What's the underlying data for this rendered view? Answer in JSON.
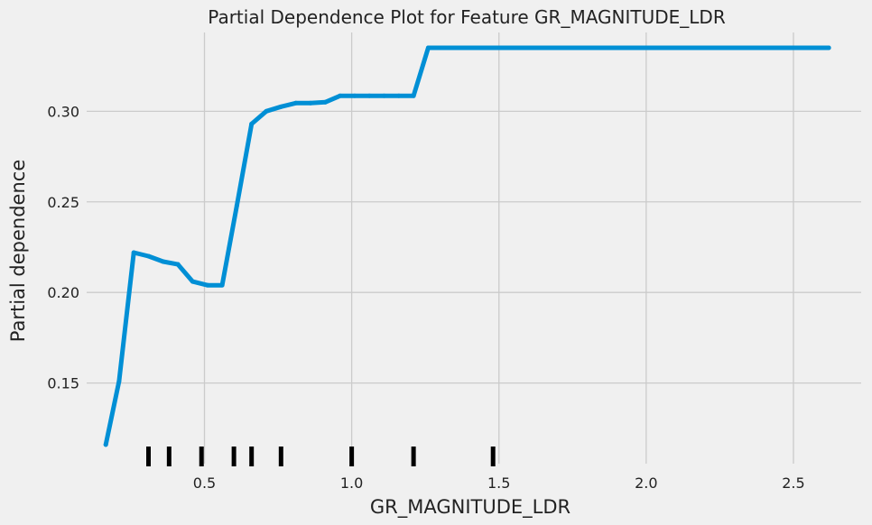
{
  "chart_data": {
    "type": "line",
    "title": "Partial Dependence Plot for Feature GR_MAGNITUDE_LDR",
    "xlabel": "GR_MAGNITUDE_LDR",
    "ylabel": "Partial dependence",
    "xlim": [
      0.1,
      2.73
    ],
    "ylim": [
      0.1055,
      0.3395
    ],
    "x_ticks": [
      {
        "value": 0.5,
        "label": "0.5"
      },
      {
        "value": 1.0,
        "label": "1.0"
      },
      {
        "value": 1.5,
        "label": "1.5"
      },
      {
        "value": 2.0,
        "label": "2.0"
      },
      {
        "value": 2.5,
        "label": "2.5"
      }
    ],
    "y_ticks": [
      {
        "value": 0.15,
        "label": "0.15"
      },
      {
        "value": 0.2,
        "label": "0.20"
      },
      {
        "value": 0.25,
        "label": "0.25"
      },
      {
        "value": 0.3,
        "label": "0.30"
      }
    ],
    "grid": true,
    "line_color": "#008fd5",
    "rug_color": "#000000",
    "series": [
      {
        "x": [
          0.165,
          0.21,
          0.26,
          0.31,
          0.36,
          0.41,
          0.46,
          0.51,
          0.56,
          0.61,
          0.66,
          0.71,
          0.76,
          0.81,
          0.86,
          0.91,
          0.96,
          1.01,
          1.06,
          1.11,
          1.16,
          1.21,
          1.26,
          1.31,
          2.62
        ],
        "y": [
          0.116,
          0.151,
          0.222,
          0.22,
          0.217,
          0.2155,
          0.206,
          0.204,
          0.204,
          0.248,
          0.293,
          0.3,
          0.3025,
          0.3045,
          0.3045,
          0.305,
          0.3085,
          0.3085,
          0.3085,
          0.3085,
          0.3085,
          0.3085,
          0.335,
          0.335,
          0.335
        ]
      }
    ],
    "rug_x": [
      0.31,
      0.38,
      0.49,
      0.6,
      0.66,
      0.76,
      1.0,
      1.21,
      1.48
    ]
  }
}
